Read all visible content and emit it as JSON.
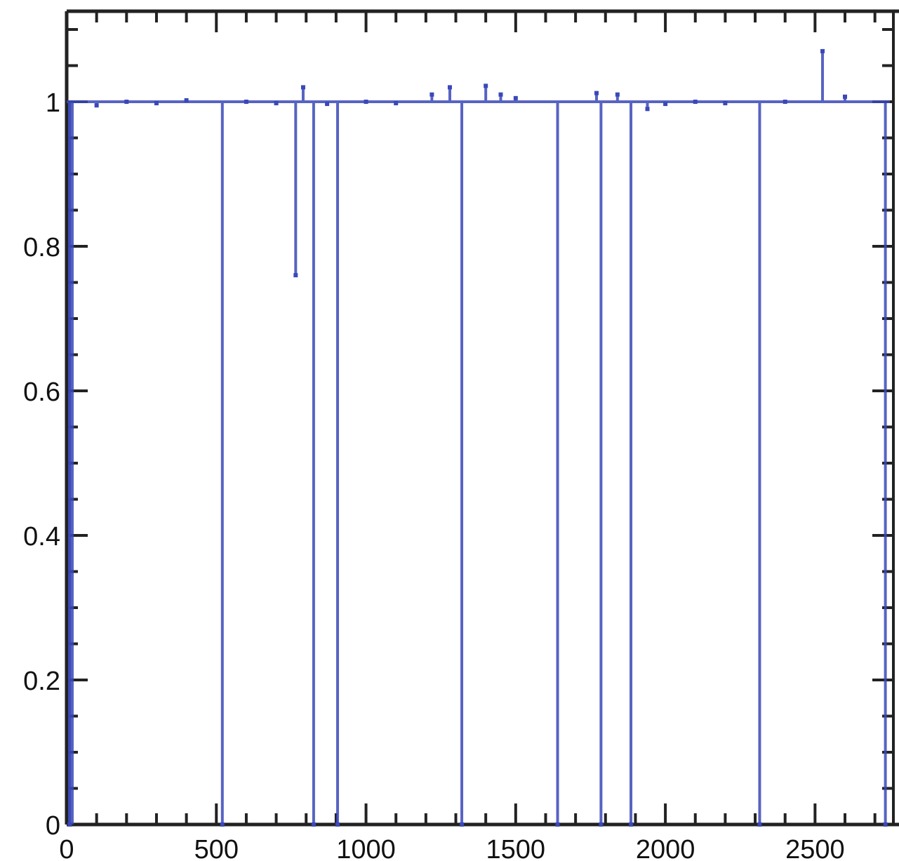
{
  "chart_data": {
    "type": "line",
    "title": "",
    "xlabel": "",
    "ylabel": "",
    "xlim": [
      0,
      2750
    ],
    "ylim": [
      0,
      1.12
    ],
    "x_ticks": [
      {
        "value": 0,
        "label": "0"
      },
      {
        "value": 500,
        "label": "500"
      },
      {
        "value": 1000,
        "label": "1000"
      },
      {
        "value": 1500,
        "label": "1500"
      },
      {
        "value": 2000,
        "label": "2000"
      },
      {
        "value": 2500,
        "label": "2500"
      }
    ],
    "y_ticks": [
      {
        "value": 0,
        "label": "0"
      },
      {
        "value": 0.2,
        "label": "0.2"
      },
      {
        "value": 0.4,
        "label": "0.4"
      },
      {
        "value": 0.6,
        "label": "0.6"
      },
      {
        "value": 0.8,
        "label": "0.8"
      },
      {
        "value": 1,
        "label": "1"
      }
    ],
    "grid": false,
    "series_color": "#3a48b8",
    "baseline": 1.0,
    "points": [
      {
        "x": 10,
        "y": 0.0
      },
      {
        "x": 100,
        "y": 0.995
      },
      {
        "x": 200,
        "y": 1.0
      },
      {
        "x": 300,
        "y": 0.998
      },
      {
        "x": 400,
        "y": 1.002
      },
      {
        "x": 520,
        "y": 0.0
      },
      {
        "x": 600,
        "y": 1.0
      },
      {
        "x": 700,
        "y": 0.998
      },
      {
        "x": 765,
        "y": 0.76
      },
      {
        "x": 790,
        "y": 1.02
      },
      {
        "x": 825,
        "y": 0.0
      },
      {
        "x": 870,
        "y": 0.997
      },
      {
        "x": 905,
        "y": 0.0
      },
      {
        "x": 1000,
        "y": 1.0
      },
      {
        "x": 1100,
        "y": 0.998
      },
      {
        "x": 1220,
        "y": 1.01
      },
      {
        "x": 1280,
        "y": 1.02
      },
      {
        "x": 1320,
        "y": 0.0
      },
      {
        "x": 1400,
        "y": 1.022
      },
      {
        "x": 1450,
        "y": 1.01
      },
      {
        "x": 1500,
        "y": 1.005
      },
      {
        "x": 1640,
        "y": 0.0
      },
      {
        "x": 1770,
        "y": 1.012
      },
      {
        "x": 1785,
        "y": 0.0
      },
      {
        "x": 1840,
        "y": 1.01
      },
      {
        "x": 1885,
        "y": 0.0
      },
      {
        "x": 1940,
        "y": 0.99
      },
      {
        "x": 2000,
        "y": 0.997
      },
      {
        "x": 2100,
        "y": 1.0
      },
      {
        "x": 2200,
        "y": 0.998
      },
      {
        "x": 2315,
        "y": 0.0
      },
      {
        "x": 2400,
        "y": 1.0
      },
      {
        "x": 2525,
        "y": 1.07
      },
      {
        "x": 2600,
        "y": 1.007
      },
      {
        "x": 2735,
        "y": 0.0
      }
    ]
  }
}
